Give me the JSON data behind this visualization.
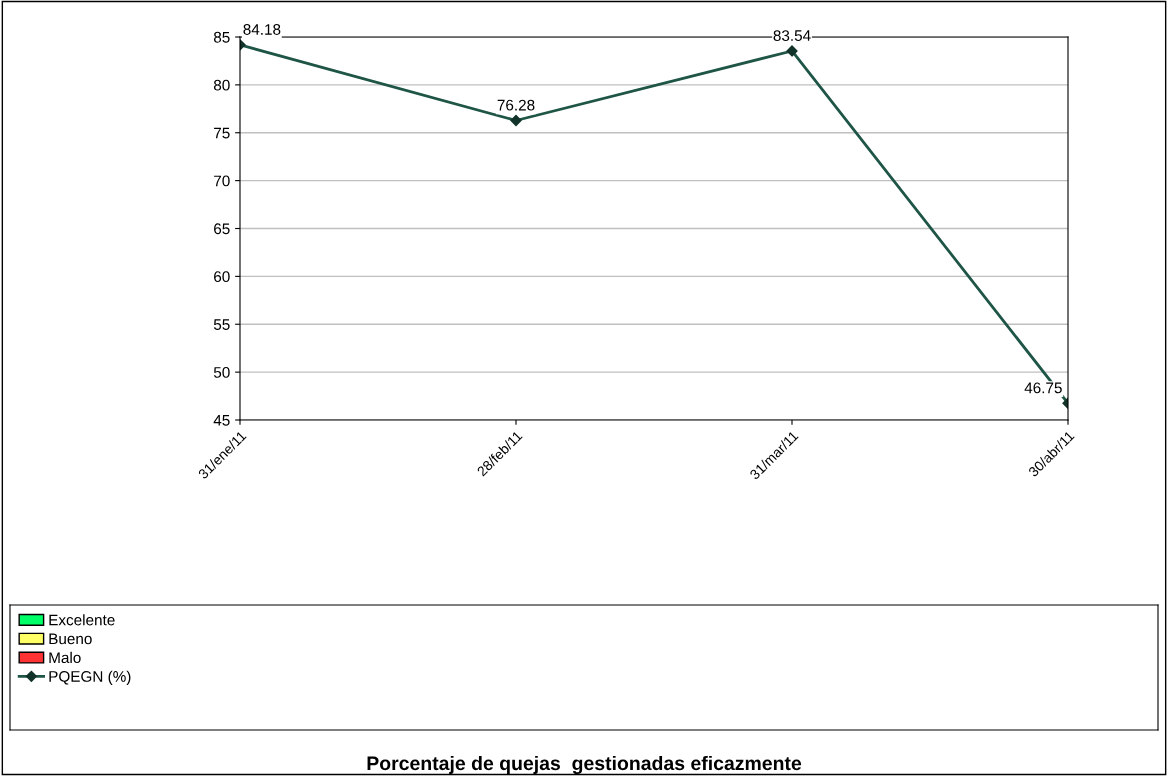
{
  "chart_data": {
    "type": "line",
    "title": "Porcentaje de quejas  gestionadas eficazmente",
    "categories": [
      "31/ene/11",
      "28/feb/11",
      "31/mar/11",
      "30/abr/11"
    ],
    "series": [
      {
        "name": "Excelente",
        "type": "area",
        "color": "#00ff66",
        "values": [
          null,
          null,
          null,
          null
        ]
      },
      {
        "name": "Bueno",
        "type": "area",
        "color": "#ffff66",
        "values": [
          null,
          null,
          null,
          null
        ]
      },
      {
        "name": "Malo",
        "type": "area",
        "color": "#ff3333",
        "values": [
          null,
          null,
          null,
          null
        ]
      },
      {
        "name": "PQEGN (%)",
        "color": "#1e5546",
        "values": [
          84.18,
          76.28,
          83.54,
          46.75
        ]
      }
    ],
    "ylim": [
      45,
      85
    ],
    "yticks": [
      45,
      50,
      55,
      60,
      65,
      70,
      75,
      80,
      85
    ],
    "grid": "y",
    "legend": "bottom",
    "marker": "diamond",
    "line_style": "solid",
    "data_labels": true
  }
}
